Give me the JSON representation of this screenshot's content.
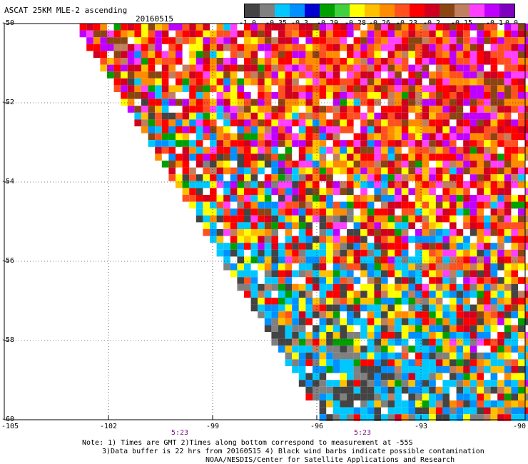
{
  "header": {
    "title": "ASCAT 25KM MLE-2 ascending",
    "date": "20160515"
  },
  "colorbar": {
    "colors": [
      "#444444",
      "#808080",
      "#00c8ff",
      "#0090ff",
      "#0000d0",
      "#00a000",
      "#40d040",
      "#ffff00",
      "#ffc000",
      "#ff8c00",
      "#ff5020",
      "#ff0000",
      "#d00020",
      "#8b4513",
      "#c08060",
      "#ff40ff",
      "#c000ff",
      "#8000c0"
    ],
    "labels": [
      "-1.0",
      "-0.35",
      "-0.3",
      "-0.29",
      "-0.28",
      "-0.26",
      "-0.23",
      "-0.2",
      "-0.15",
      "-0.1",
      "0.0"
    ]
  },
  "map": {
    "lat_range": [
      -60,
      -50
    ],
    "lon_range": [
      -105,
      -90
    ],
    "lat_labels": [
      "-50",
      "-52",
      "-54",
      "-56",
      "-58",
      "-60"
    ],
    "lon_labels": [
      "-105",
      "-102",
      "-99",
      "-96",
      "-93",
      "-90"
    ],
    "time_labels": [
      "5:23",
      "5:23"
    ],
    "grid": true
  },
  "notes": {
    "line1": "Note: 1) Times are GMT 2)Times along bottom correspond to measurement at -55S",
    "line2": "3)Data buffer is 22 hrs from 20160515 4) Black wind barbs indicate possible contamination",
    "line3": "NOAA/NESDIS/Center for Satellite Applications and Research"
  }
}
